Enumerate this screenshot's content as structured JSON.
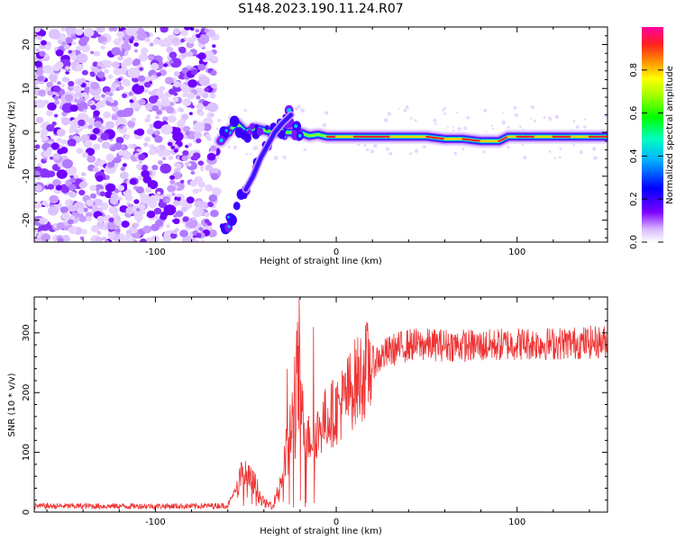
{
  "title": "S148.2023.190.11.24.R07",
  "chart_data": [
    {
      "type": "heatmap",
      "xlabel": "Height of straight line (km)",
      "ylabel": "Frequency (Hz)",
      "xlim": [
        -167,
        150
      ],
      "ylim": [
        -25,
        24
      ],
      "x_ticks": [
        -100,
        0,
        100
      ],
      "y_ticks": [
        -20,
        -10,
        0,
        10,
        20
      ],
      "noise_region_x": [
        -167,
        -66
      ],
      "signal_track": [
        {
          "x": -64,
          "y": -2
        },
        {
          "x": -60,
          "y": 0
        },
        {
          "x": -55,
          "y": 2
        },
        {
          "x": -50,
          "y": 0
        },
        {
          "x": -45,
          "y": 1
        },
        {
          "x": -40,
          "y": 0.5
        },
        {
          "x": -35,
          "y": 0
        },
        {
          "x": -30,
          "y": 0
        },
        {
          "x": -25,
          "y": 0
        },
        {
          "x": -20,
          "y": 0
        },
        {
          "x": -15,
          "y": -0.8
        },
        {
          "x": -10,
          "y": -0.5
        },
        {
          "x": -5,
          "y": -1
        },
        {
          "x": 0,
          "y": -1
        },
        {
          "x": 10,
          "y": -1
        },
        {
          "x": 30,
          "y": -1
        },
        {
          "x": 50,
          "y": -1
        },
        {
          "x": 60,
          "y": -1.5
        },
        {
          "x": 70,
          "y": -1.5
        },
        {
          "x": 80,
          "y": -2
        },
        {
          "x": 90,
          "y": -2
        },
        {
          "x": 95,
          "y": -1
        },
        {
          "x": 100,
          "y": -1
        },
        {
          "x": 110,
          "y": -1
        },
        {
          "x": 120,
          "y": -1
        },
        {
          "x": 130,
          "y": -1
        },
        {
          "x": 140,
          "y": -1
        },
        {
          "x": 150,
          "y": -1
        }
      ],
      "secondary_branch": [
        {
          "x": -50,
          "y": -13
        },
        {
          "x": -46,
          "y": -10
        },
        {
          "x": -42,
          "y": -6
        },
        {
          "x": -38,
          "y": -3
        },
        {
          "x": -34,
          "y": 0
        },
        {
          "x": -30,
          "y": 2
        },
        {
          "x": -25,
          "y": 4
        }
      ],
      "colorbar": {
        "label": "Normalized spectral amplitude",
        "range": [
          0.0,
          1.0
        ],
        "ticks": [
          0.0,
          0.2,
          0.4,
          0.6,
          0.8
        ]
      }
    },
    {
      "type": "line",
      "xlabel": "Height of straight line (km)",
      "ylabel": "SNR (10 * v/v)",
      "xlim": [
        -167,
        150
      ],
      "ylim": [
        0,
        360
      ],
      "x_ticks": [
        -100,
        0,
        100
      ],
      "y_ticks": [
        0,
        100,
        200,
        300
      ],
      "series": [
        {
          "name": "SNR",
          "color": "#ee3333",
          "envelope": [
            {
              "x": -167,
              "y": 10
            },
            {
              "x": -120,
              "y": 10
            },
            {
              "x": -80,
              "y": 10
            },
            {
              "x": -60,
              "y": 11
            },
            {
              "x": -52,
              "y": 60
            },
            {
              "x": -45,
              "y": 45
            },
            {
              "x": -40,
              "y": 15
            },
            {
              "x": -35,
              "y": 10
            },
            {
              "x": -30,
              "y": 60
            },
            {
              "x": -25,
              "y": 130
            },
            {
              "x": -21,
              "y": 220
            },
            {
              "x": -17,
              "y": 120
            },
            {
              "x": -12,
              "y": 130
            },
            {
              "x": -5,
              "y": 160
            },
            {
              "x": 0,
              "y": 170
            },
            {
              "x": 5,
              "y": 190
            },
            {
              "x": 10,
              "y": 215
            },
            {
              "x": 20,
              "y": 250
            },
            {
              "x": 30,
              "y": 270
            },
            {
              "x": 40,
              "y": 280
            },
            {
              "x": 60,
              "y": 280
            },
            {
              "x": 80,
              "y": 278
            },
            {
              "x": 100,
              "y": 282
            },
            {
              "x": 120,
              "y": 282
            },
            {
              "x": 150,
              "y": 285
            }
          ],
          "peaks": [
            {
              "x": -20.5,
              "y": 357
            },
            {
              "x": -12.5,
              "y": 310
            },
            {
              "x": -27,
              "y": 240
            },
            {
              "x": -23,
              "y": 260
            }
          ]
        }
      ]
    }
  ]
}
